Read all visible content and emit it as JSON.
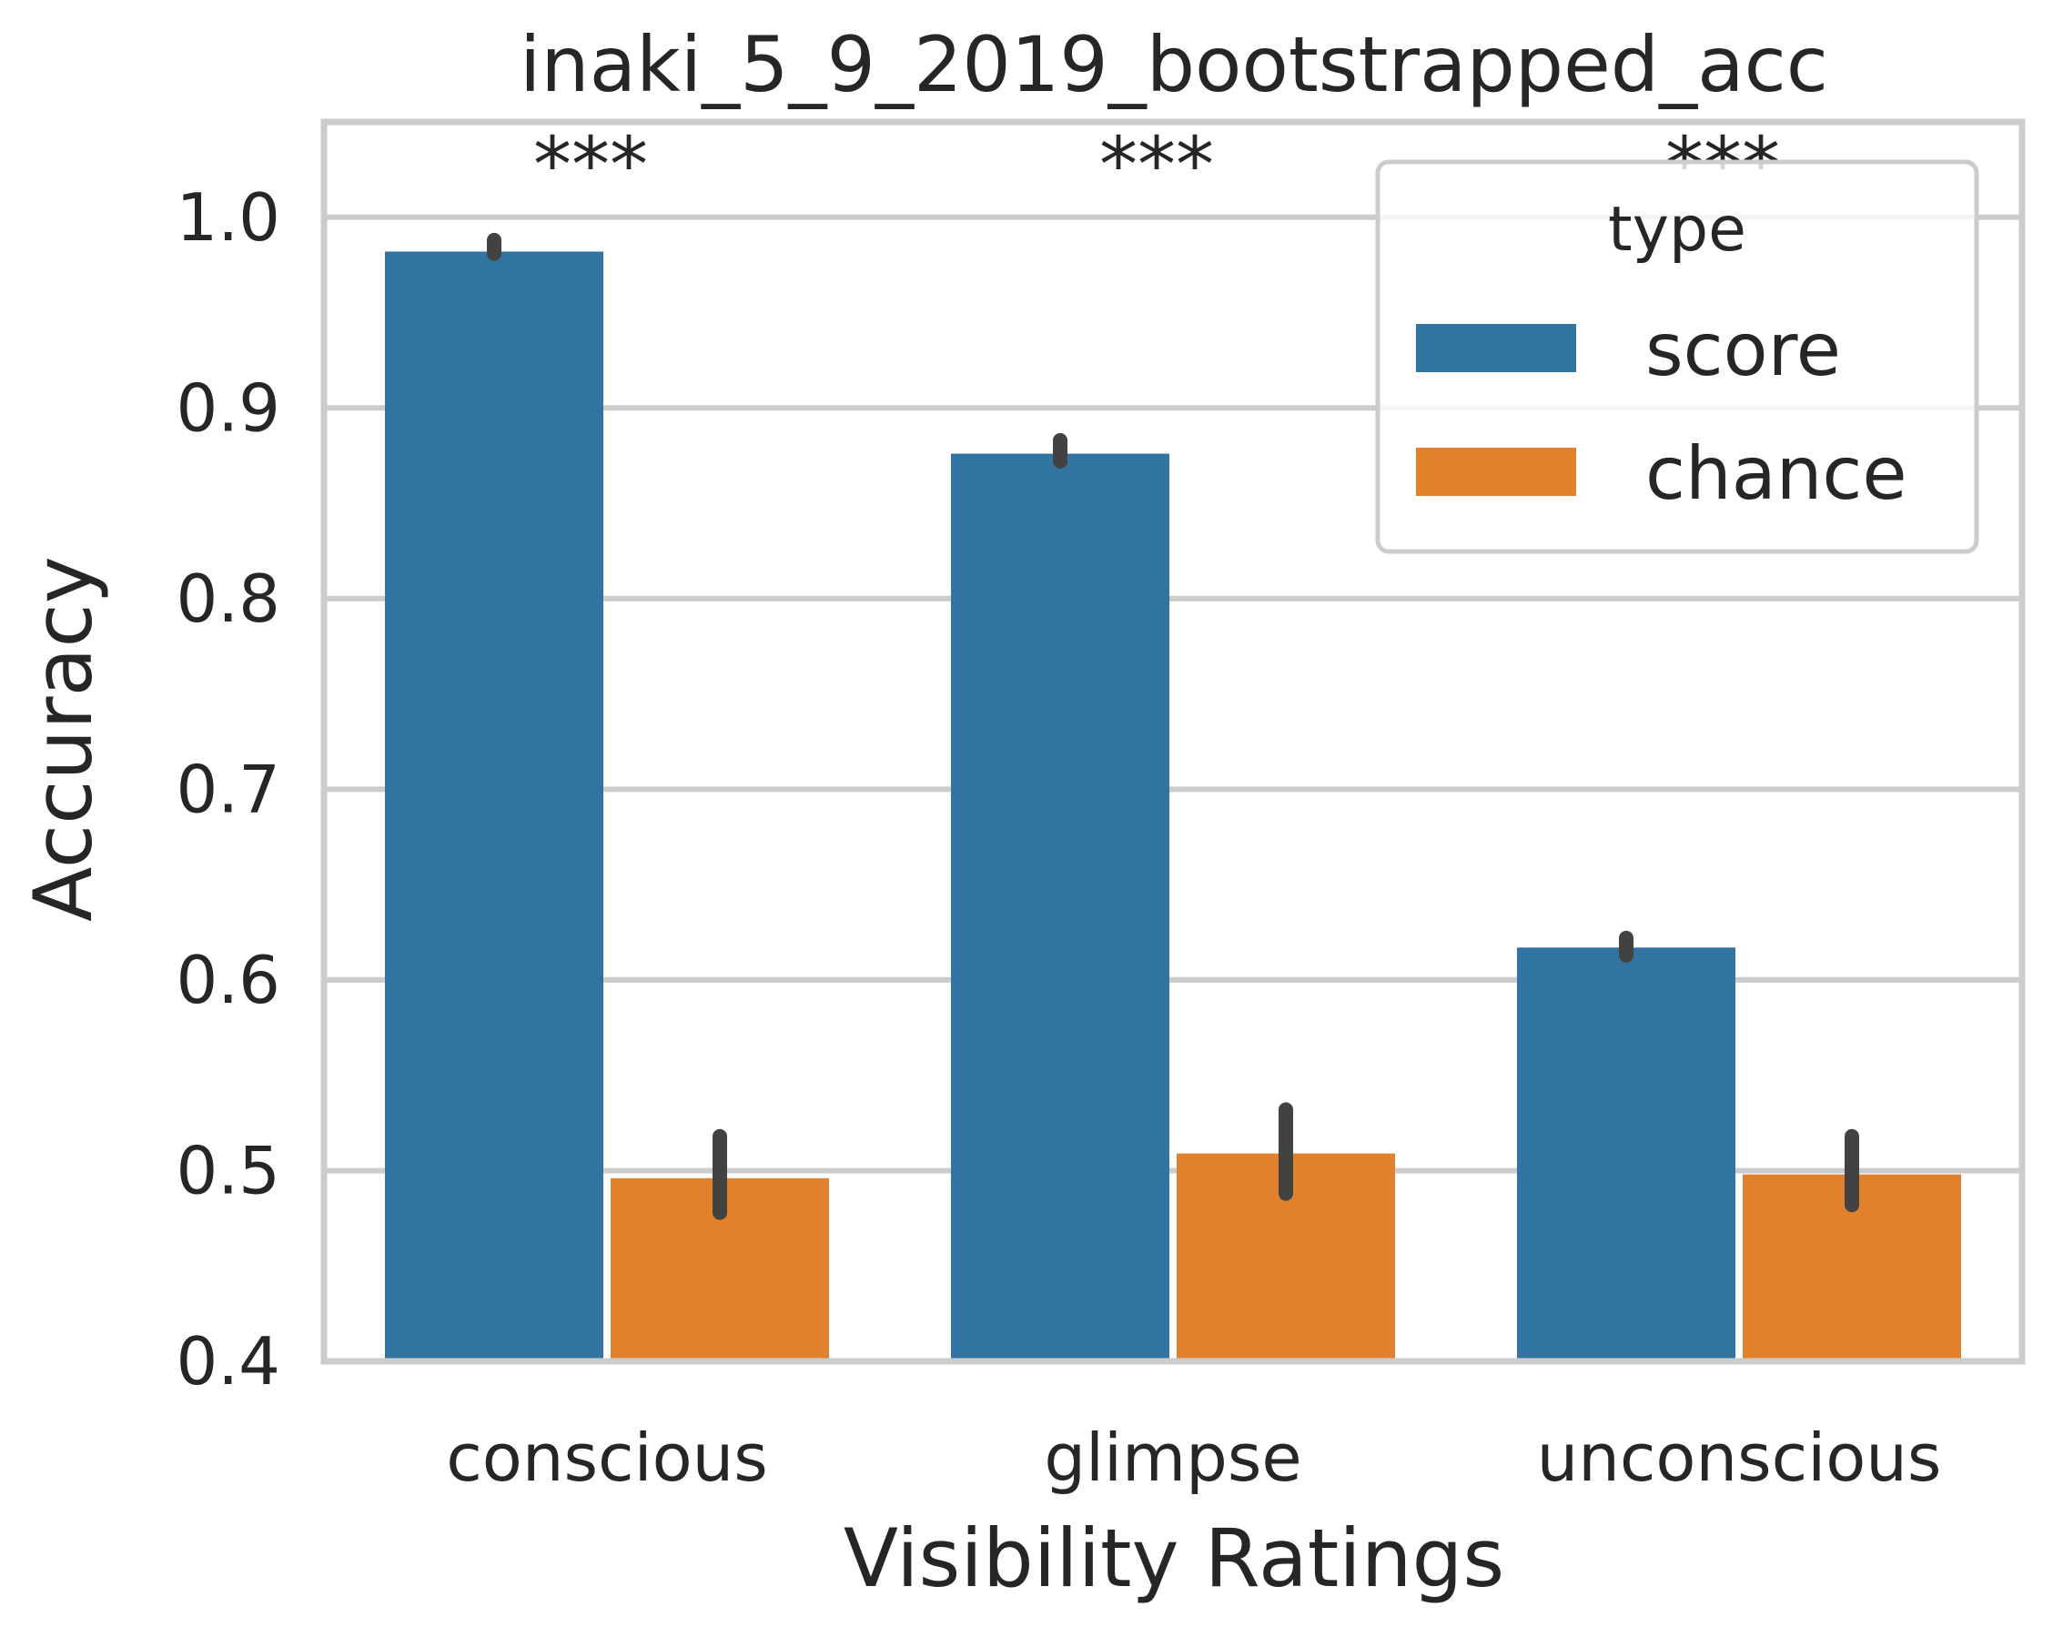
{
  "chart_data": {
    "type": "bar",
    "title": "inaki_5_9_2019_bootstrapped_acc",
    "xlabel": "Visibility Ratings",
    "ylabel": "Accuracy",
    "categories": [
      "conscious",
      "glimpse",
      "unconscious"
    ],
    "ylim": [
      0.4,
      1.05
    ],
    "yticks": [
      "0.4",
      "0.5",
      "0.6",
      "0.7",
      "0.8",
      "0.9",
      "1.0"
    ],
    "grid": true,
    "legend": {
      "title": "type",
      "placement": "top-right"
    },
    "series": [
      {
        "name": "score",
        "color": "#3274a1",
        "values": [
          0.982,
          0.876,
          0.617
        ],
        "error_low": [
          0.981,
          0.872,
          0.613
        ],
        "error_high": [
          0.988,
          0.883,
          0.622
        ]
      },
      {
        "name": "chance",
        "color": "#e1812c",
        "values": [
          0.496,
          0.509,
          0.498
        ],
        "error_low": [
          0.478,
          0.488,
          0.482
        ],
        "error_high": [
          0.518,
          0.532,
          0.518
        ]
      }
    ],
    "annotations": [
      "***",
      "***",
      "***"
    ]
  }
}
